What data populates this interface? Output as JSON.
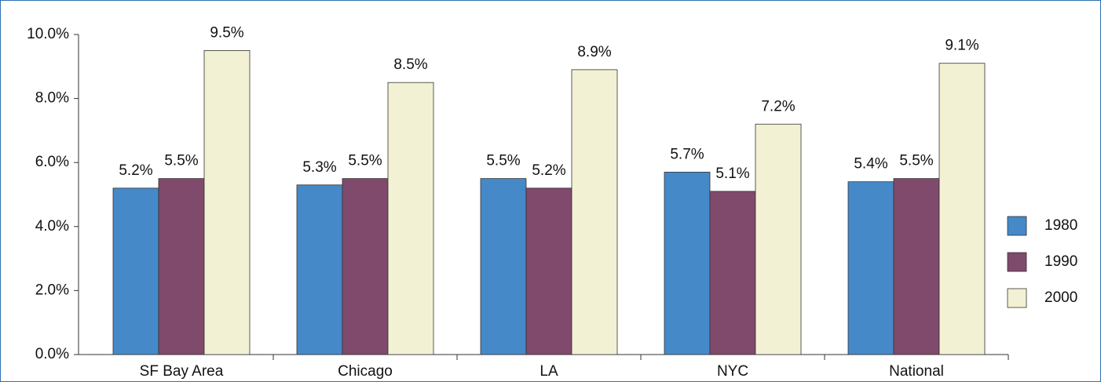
{
  "chart_data": {
    "type": "bar",
    "categories": [
      "SF Bay Area",
      "Chicago",
      "LA",
      "NYC",
      "National"
    ],
    "series": [
      {
        "name": "1980",
        "color": "#4589c8",
        "values": [
          5.2,
          5.3,
          5.5,
          5.7,
          5.4
        ],
        "value_labels": [
          "5.2%",
          "5.3%",
          "5.5%",
          "5.7%",
          "5.4%"
        ]
      },
      {
        "name": "1990",
        "color": "#804a6c",
        "values": [
          5.5,
          5.5,
          5.2,
          5.1,
          5.5
        ],
        "value_labels": [
          "5.5%",
          "5.5%",
          "5.2%",
          "5.1%",
          "5.5%"
        ]
      },
      {
        "name": "2000",
        "color": "#f3f1d4",
        "values": [
          9.5,
          8.5,
          8.9,
          7.2,
          9.1
        ],
        "value_labels": [
          "9.5%",
          "8.5%",
          "8.9%",
          "7.2%",
          "9.1%"
        ]
      }
    ],
    "ylim": [
      0,
      10
    ],
    "yticks": [
      {
        "value": 0,
        "label": "0.0%"
      },
      {
        "value": 2,
        "label": "2.0%"
      },
      {
        "value": 4,
        "label": "4.0%"
      },
      {
        "value": 6,
        "label": "6.0%"
      },
      {
        "value": 8,
        "label": "8.0%"
      },
      {
        "value": 10,
        "label": "10.0%"
      }
    ],
    "legend": "right"
  }
}
